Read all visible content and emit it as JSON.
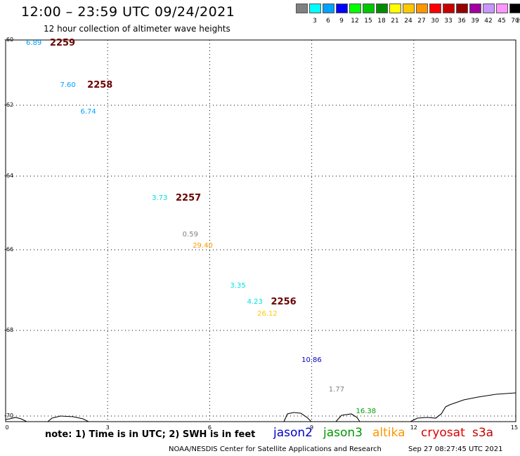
{
  "header": {
    "title": "12:00 – 23:59 UTC 09/24/2021",
    "subtitle": "12 hour collection of altimeter wave heights"
  },
  "color_scale": {
    "unit": "(ft)",
    "bins": [
      {
        "label": "",
        "color": "#808080"
      },
      {
        "label": "3",
        "color": "#00ffff"
      },
      {
        "label": "6",
        "color": "#00a0ff"
      },
      {
        "label": "9",
        "color": "#0000ff"
      },
      {
        "label": "12",
        "color": "#00ff00"
      },
      {
        "label": "15",
        "color": "#00c800"
      },
      {
        "label": "18",
        "color": "#008c00"
      },
      {
        "label": "21",
        "color": "#ffff00"
      },
      {
        "label": "24",
        "color": "#ffc800"
      },
      {
        "label": "27",
        "color": "#ff9600"
      },
      {
        "label": "30",
        "color": "#ff0000"
      },
      {
        "label": "33",
        "color": "#c80000"
      },
      {
        "label": "36",
        "color": "#960000"
      },
      {
        "label": "39",
        "color": "#a000a0"
      },
      {
        "label": "42",
        "color": "#c896ff"
      },
      {
        "label": "45",
        "color": "#ff96ff"
      },
      {
        "label": "70",
        "color": "#000000"
      }
    ]
  },
  "axes": {
    "y_ticks": [
      "-60",
      "-62",
      "-64",
      "-66",
      "-68",
      "-70"
    ],
    "x_ticks": [
      "0",
      "3",
      "6",
      "9",
      "12",
      "15"
    ]
  },
  "map_labels": {
    "revs": [
      {
        "text": "2259",
        "lon": 1.3,
        "lat": -60.1
      },
      {
        "text": "2258",
        "lon": 2.4,
        "lat": -61.4
      },
      {
        "text": "2257",
        "lon": 5.0,
        "lat": -64.6
      },
      {
        "text": "2256",
        "lon": 7.8,
        "lat": -67.3
      }
    ],
    "wave_heights": [
      {
        "text": "6.89",
        "lon": 0.6,
        "lat": -60.1,
        "color": "#00a0ff"
      },
      {
        "text": "7.60",
        "lon": 1.6,
        "lat": -61.4,
        "color": "#00a0ff"
      },
      {
        "text": "6.74",
        "lon": 2.2,
        "lat": -62.2,
        "color": "#00a0ff"
      },
      {
        "text": "3.73",
        "lon": 4.3,
        "lat": -64.6,
        "color": "#00e0e0"
      },
      {
        "text": "0.59",
        "lon": 5.2,
        "lat": -65.6,
        "color": "#808080"
      },
      {
        "text": "29.40",
        "lon": 5.5,
        "lat": -65.9,
        "color": "#ff9600"
      },
      {
        "text": "3.35",
        "lon": 6.6,
        "lat": -66.9,
        "color": "#00e0e0"
      },
      {
        "text": "4.23",
        "lon": 7.1,
        "lat": -67.3,
        "color": "#00e0e0"
      },
      {
        "text": "26.12",
        "lon": 7.4,
        "lat": -67.6,
        "color": "#ffc800"
      },
      {
        "text": "10.86",
        "lon": 8.7,
        "lat": -68.7,
        "color": "#0000c0"
      },
      {
        "text": "1.77",
        "lon": 9.5,
        "lat": -69.4,
        "color": "#808080"
      },
      {
        "text": "16.38",
        "lon": 10.3,
        "lat": -69.9,
        "color": "#00a000"
      }
    ]
  },
  "footer": {
    "note": "note: 1) Time is in UTC; 2) SWH is in feet",
    "satellites": [
      {
        "name": "jason2",
        "color": "#0000c8"
      },
      {
        "name": "jason3",
        "color": "#009600"
      },
      {
        "name": "altika",
        "color": "#ff9600"
      },
      {
        "name": "cryosat",
        "color": "#e00000"
      },
      {
        "name": "s3a",
        "color": "#c80000"
      }
    ],
    "credit": "NOAA/NESDIS Center for Satellite Applications and Research",
    "timestamp": "Sep 27 08:27:45 UTC 2021"
  }
}
